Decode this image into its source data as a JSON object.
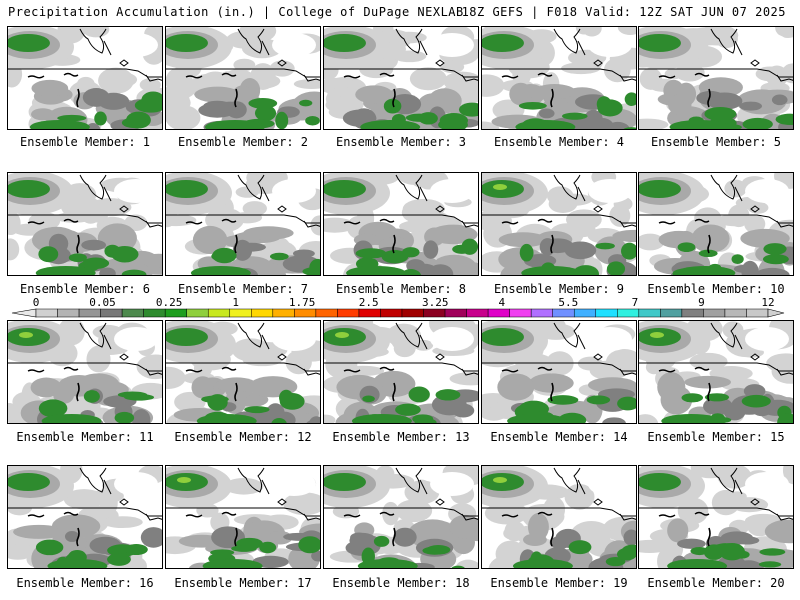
{
  "header": {
    "left": "Precipitation Accumulation (in.) | College of DuPage NEXLAB",
    "right": "18Z GEFS | F018 Valid: 12Z SAT JUN 07 2025"
  },
  "members": [
    "Ensemble Member: 1",
    "Ensemble Member: 2",
    "Ensemble Member: 3",
    "Ensemble Member: 4",
    "Ensemble Member: 5",
    "Ensemble Member: 6",
    "Ensemble Member: 7",
    "Ensemble Member: 8",
    "Ensemble Member: 9",
    "Ensemble Member: 10",
    "Ensemble Member: 11",
    "Ensemble Member: 12",
    "Ensemble Member: 13",
    "Ensemble Member: 14",
    "Ensemble Member: 15",
    "Ensemble Member: 16",
    "Ensemble Member: 17",
    "Ensemble Member: 18",
    "Ensemble Member: 19",
    "Ensemble Member: 20"
  ],
  "colorbar": {
    "labels": [
      "0",
      "0.05",
      "0.25",
      "1",
      "1.75",
      "2.5",
      "3.25",
      "4",
      "5.5",
      "7",
      "9",
      "12"
    ],
    "colors": [
      "#d0d0d0",
      "#b4b4b4",
      "#969696",
      "#787878",
      "#4e8a4e",
      "#2e8b2e",
      "#1e9e1e",
      "#8fcf3c",
      "#c8e81e",
      "#f0f01e",
      "#ffd700",
      "#ffb000",
      "#ff8c00",
      "#ff6400",
      "#ff3c00",
      "#e00000",
      "#c00000",
      "#a00000",
      "#8b0020",
      "#a0005a",
      "#c8008c",
      "#e000c8",
      "#f040f0",
      "#b070ff",
      "#7090ff",
      "#40b0ff",
      "#20e0ff",
      "#30f0e0",
      "#40c8c8",
      "#50a0a0",
      "#808080",
      "#a0a0a0",
      "#b8b8b8",
      "#c8c8c8"
    ]
  },
  "map_colors": {
    "light": "#d3d3d3",
    "mid": "#a9a9a9",
    "dark": "#808080",
    "green": "#2e8b2e",
    "lime": "#8fcf3c",
    "coast": "#000000"
  }
}
